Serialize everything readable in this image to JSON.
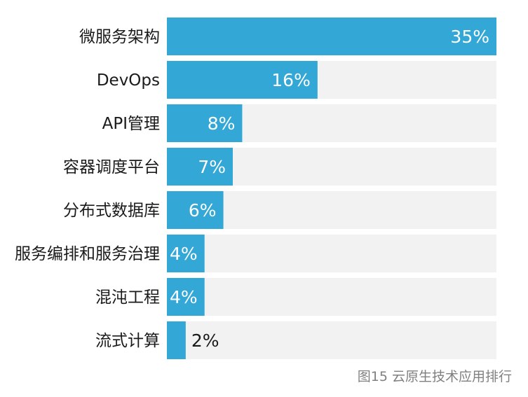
{
  "chart_data": {
    "type": "bar",
    "orientation": "horizontal",
    "categories": [
      "微服务架构",
      "DevOps",
      "API管理",
      "容器调度平台",
      "分布式数据库",
      "服务编排和服务治理",
      "混沌工程",
      "流式计算"
    ],
    "values": [
      35,
      16,
      8,
      7,
      6,
      4,
      4,
      2
    ],
    "value_labels": [
      "35%",
      "16%",
      "8%",
      "7%",
      "6%",
      "4%",
      "4%",
      "2%"
    ],
    "unit": "%",
    "xlim": [
      0,
      35
    ],
    "bar_color": "#33a7d6",
    "track_color": "#f2f2f2",
    "grid": false,
    "legend": "none"
  },
  "caption": "图15  云原生技术应用排行"
}
